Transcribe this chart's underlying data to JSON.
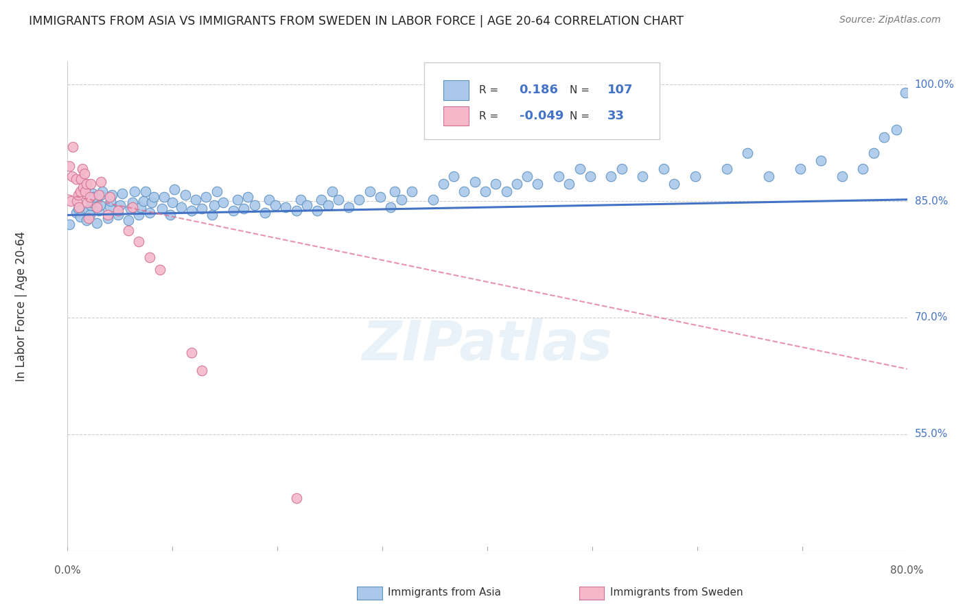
{
  "title": "IMMIGRANTS FROM ASIA VS IMMIGRANTS FROM SWEDEN IN LABOR FORCE | AGE 20-64 CORRELATION CHART",
  "source": "Source: ZipAtlas.com",
  "ylabel": "In Labor Force | Age 20-64",
  "xmin": 0.0,
  "xmax": 0.8,
  "ymin": 0.4,
  "ymax": 1.03,
  "right_yticks": [
    1.0,
    0.85,
    0.7,
    0.55
  ],
  "right_ytick_labels": [
    "100.0%",
    "85.0%",
    "70.0%",
    "55.0%"
  ],
  "bottom_xtick_labels_left": "0.0%",
  "bottom_xtick_labels_right": "80.0%",
  "legend_r1_val": "0.186",
  "legend_n1_val": "107",
  "legend_r2_val": "-0.049",
  "legend_n2_val": "33",
  "asia_color": "#aac9ea",
  "asia_edge_color": "#5a8fc0",
  "asia_line_color": "#4472c4",
  "sweden_color": "#f5b8cb",
  "sweden_edge_color": "#d07090",
  "sweden_line_color": "#e07090",
  "watermark": "ZIPatlas",
  "asia_scatter_x": [
    0.002,
    0.008,
    0.01,
    0.012,
    0.018,
    0.02,
    0.021,
    0.022,
    0.022,
    0.023,
    0.024,
    0.025,
    0.028,
    0.03,
    0.031,
    0.032,
    0.033,
    0.038,
    0.04,
    0.041,
    0.042,
    0.048,
    0.05,
    0.052,
    0.058,
    0.06,
    0.062,
    0.064,
    0.068,
    0.07,
    0.072,
    0.074,
    0.078,
    0.08,
    0.082,
    0.09,
    0.092,
    0.098,
    0.1,
    0.102,
    0.108,
    0.112,
    0.118,
    0.122,
    0.128,
    0.132,
    0.138,
    0.14,
    0.142,
    0.148,
    0.158,
    0.162,
    0.168,
    0.172,
    0.178,
    0.188,
    0.192,
    0.198,
    0.208,
    0.218,
    0.222,
    0.228,
    0.238,
    0.242,
    0.248,
    0.252,
    0.258,
    0.268,
    0.278,
    0.288,
    0.298,
    0.308,
    0.312,
    0.318,
    0.328,
    0.348,
    0.358,
    0.368,
    0.378,
    0.388,
    0.398,
    0.408,
    0.418,
    0.428,
    0.438,
    0.448,
    0.468,
    0.478,
    0.488,
    0.498,
    0.518,
    0.528,
    0.548,
    0.568,
    0.578,
    0.598,
    0.628,
    0.648,
    0.668,
    0.698,
    0.718,
    0.738,
    0.758,
    0.768,
    0.778,
    0.79,
    0.798
  ],
  "asia_scatter_y": [
    0.82,
    0.835,
    0.84,
    0.83,
    0.825,
    0.838,
    0.832,
    0.845,
    0.852,
    0.848,
    0.86,
    0.855,
    0.822,
    0.838,
    0.845,
    0.858,
    0.862,
    0.828,
    0.842,
    0.85,
    0.858,
    0.832,
    0.845,
    0.86,
    0.825,
    0.84,
    0.848,
    0.862,
    0.832,
    0.842,
    0.85,
    0.862,
    0.835,
    0.848,
    0.855,
    0.84,
    0.855,
    0.832,
    0.848,
    0.865,
    0.842,
    0.858,
    0.838,
    0.852,
    0.84,
    0.855,
    0.832,
    0.845,
    0.862,
    0.848,
    0.838,
    0.852,
    0.84,
    0.855,
    0.845,
    0.835,
    0.852,
    0.845,
    0.842,
    0.838,
    0.852,
    0.845,
    0.838,
    0.852,
    0.845,
    0.862,
    0.852,
    0.842,
    0.852,
    0.862,
    0.855,
    0.842,
    0.862,
    0.852,
    0.862,
    0.852,
    0.872,
    0.882,
    0.862,
    0.875,
    0.862,
    0.872,
    0.862,
    0.872,
    0.882,
    0.872,
    0.882,
    0.872,
    0.892,
    0.882,
    0.882,
    0.892,
    0.882,
    0.892,
    0.872,
    0.882,
    0.892,
    0.912,
    0.882,
    0.892,
    0.902,
    0.882,
    0.892,
    0.912,
    0.932,
    0.942,
    0.99
  ],
  "sweden_scatter_x": [
    0.002,
    0.003,
    0.004,
    0.005,
    0.008,
    0.009,
    0.01,
    0.011,
    0.012,
    0.013,
    0.014,
    0.015,
    0.016,
    0.017,
    0.018,
    0.019,
    0.02,
    0.021,
    0.022,
    0.028,
    0.03,
    0.032,
    0.038,
    0.04,
    0.048,
    0.058,
    0.062,
    0.068,
    0.078,
    0.088,
    0.118,
    0.128,
    0.218
  ],
  "sweden_scatter_y": [
    0.895,
    0.85,
    0.882,
    0.92,
    0.878,
    0.85,
    0.858,
    0.842,
    0.862,
    0.878,
    0.892,
    0.868,
    0.885,
    0.862,
    0.872,
    0.848,
    0.828,
    0.855,
    0.872,
    0.842,
    0.858,
    0.875,
    0.832,
    0.855,
    0.838,
    0.812,
    0.842,
    0.798,
    0.778,
    0.762,
    0.655,
    0.632,
    0.468
  ]
}
